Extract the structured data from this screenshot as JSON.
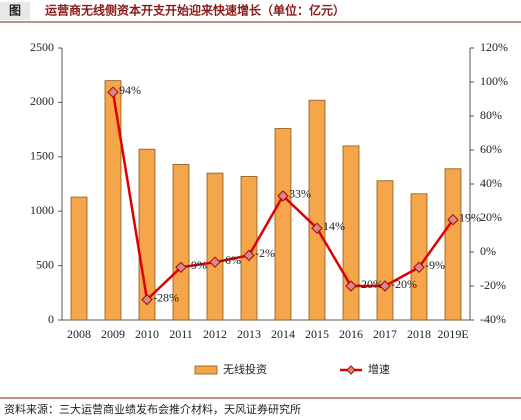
{
  "chart_data": {
    "type": "bar_line",
    "figure_label": "图",
    "title": "运营商无线侧资本开支开始迎来快速增长（单位：亿元）",
    "source": "资料来源：三大运营商业绩发布会推介材料，天风证券研究所",
    "categories": [
      "2008",
      "2009",
      "2010",
      "2011",
      "2012",
      "2013",
      "2014",
      "2015",
      "2016",
      "2017",
      "2018",
      "2019E"
    ],
    "series": [
      {
        "name": "无线投资",
        "type": "bar",
        "color": "#f5a54a",
        "values": [
          1130,
          2200,
          1570,
          1430,
          1350,
          1320,
          1760,
          2020,
          1600,
          1280,
          1160,
          1390
        ]
      },
      {
        "name": "增速",
        "type": "line",
        "axis": "y2",
        "color": "#e00000",
        "values": [
          null,
          94,
          -28,
          -9,
          -6,
          -2,
          33,
          14,
          -20,
          -20,
          -9,
          19
        ],
        "value_labels": [
          null,
          "94%",
          "-28%",
          "-9%",
          "-6%",
          "-2%",
          "33%",
          "14%",
          "-20%",
          "-20%",
          "-9%",
          "19%"
        ]
      }
    ],
    "ylim": [
      0,
      2500
    ],
    "yticks": [
      0,
      500,
      1000,
      1500,
      2000,
      2500
    ],
    "y2lim": [
      -40,
      120
    ],
    "y2ticks": [
      {
        "value": -40,
        "label": "-40%"
      },
      {
        "value": -20,
        "label": "-20%"
      },
      {
        "value": 0,
        "label": "0%"
      },
      {
        "value": 20,
        "label": "20%"
      },
      {
        "value": 40,
        "label": "40%"
      },
      {
        "value": 60,
        "label": "60%"
      },
      {
        "value": 80,
        "label": "80%"
      },
      {
        "value": 100,
        "label": "100%"
      },
      {
        "value": 120,
        "label": "120%"
      }
    ],
    "legend": "bottom"
  }
}
